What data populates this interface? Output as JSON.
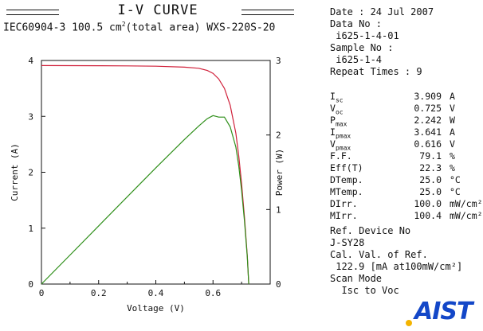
{
  "header": {
    "title": "I-V CURVE",
    "subtitle_pre": "IEC60904-3 100.5 cm",
    "subtitle_sup": "2",
    "subtitle_post": "(total area) WXS-220S-20"
  },
  "info": {
    "date_line": "Date : 24 Jul 2007",
    "data_no_label": "Data No :",
    "data_no": "i625-1-4-01",
    "sample_no_label": "Sample No :",
    "sample_no": "i625-1-4",
    "repeat_line": "Repeat Times : 9"
  },
  "results": [
    {
      "label": "I",
      "sub": "sc",
      "value": "3.909",
      "unit": "A"
    },
    {
      "label": "V",
      "sub": "oc",
      "value": "0.725",
      "unit": "V"
    },
    {
      "label": "P",
      "sub": "max",
      "value": "2.242",
      "unit": "W"
    },
    {
      "label": "I",
      "sub": "pmax",
      "value": "3.641",
      "unit": "A"
    },
    {
      "label": "V",
      "sub": "pmax",
      "value": "0.616",
      "unit": "V"
    },
    {
      "label": "F.F.",
      "sub": "",
      "value": "79.1",
      "unit": "%"
    },
    {
      "label": "Eff(T)",
      "sub": "",
      "value": "22.3",
      "unit": "%"
    },
    {
      "label": "DTemp.",
      "sub": "",
      "value": "25.0",
      "unit": "°C"
    },
    {
      "label": "MTemp.",
      "sub": "",
      "value": "25.0",
      "unit": "°C"
    },
    {
      "label": "DIrr.",
      "sub": "",
      "value": "100.0",
      "unit": "mW/cm²"
    },
    {
      "label": "MIrr.",
      "sub": "",
      "value": "100.4",
      "unit": "mW/cm²"
    }
  ],
  "reference": {
    "ref_device_label": "Ref. Device No",
    "ref_device": "J-SY28",
    "cal_label": "Cal. Val. of Ref.",
    "cal_value": " 122.9 [mA at100mW/cm²]",
    "scan_label": "Scan Mode",
    "scan_mode": "  Isc to Voc"
  },
  "logo": {
    "text": "AIST"
  },
  "colors": {
    "current_curve": "#d0203a",
    "power_curve": "#2f8f1a",
    "logo": "#1347c8",
    "logo_dot": "#f4b400"
  },
  "chart_data": {
    "type": "line",
    "xlabel": "Voltage (V)",
    "ylabel": "Current (A)",
    "y2label": "Power (W)",
    "xlim": [
      0,
      0.8
    ],
    "ylim": [
      0,
      4
    ],
    "y2lim": [
      0,
      3
    ],
    "xticks": [
      "0",
      "0.2",
      "0.4",
      "0.6"
    ],
    "xtick_values": [
      0,
      0.2,
      0.4,
      0.6
    ],
    "yticks": [
      "0",
      "1",
      "2",
      "3",
      "4"
    ],
    "ytick_values": [
      0,
      1,
      2,
      3,
      4
    ],
    "y2ticks": [
      "0",
      "1",
      "2",
      "3"
    ],
    "y2tick_values": [
      0,
      1,
      2,
      3
    ],
    "grid": false,
    "series": [
      {
        "axis": "left",
        "x": [
          0,
          0.1,
          0.2,
          0.3,
          0.4,
          0.5,
          0.55,
          0.58,
          0.6,
          0.62,
          0.64,
          0.66,
          0.68,
          0.69,
          0.7,
          0.71,
          0.72,
          0.725
        ],
        "values": [
          3.909,
          3.908,
          3.906,
          3.903,
          3.898,
          3.88,
          3.86,
          3.82,
          3.77,
          3.67,
          3.5,
          3.2,
          2.7,
          2.3,
          1.8,
          1.2,
          0.5,
          0.0
        ]
      },
      {
        "axis": "right",
        "x": [
          0,
          0.1,
          0.2,
          0.3,
          0.4,
          0.5,
          0.55,
          0.58,
          0.6,
          0.62,
          0.64,
          0.66,
          0.68,
          0.69,
          0.7,
          0.71,
          0.72,
          0.725
        ],
        "values": [
          0,
          0.39,
          0.78,
          1.17,
          1.56,
          1.94,
          2.12,
          2.22,
          2.26,
          2.24,
          2.24,
          2.11,
          1.84,
          1.59,
          1.26,
          0.85,
          0.36,
          0.0
        ]
      }
    ]
  }
}
